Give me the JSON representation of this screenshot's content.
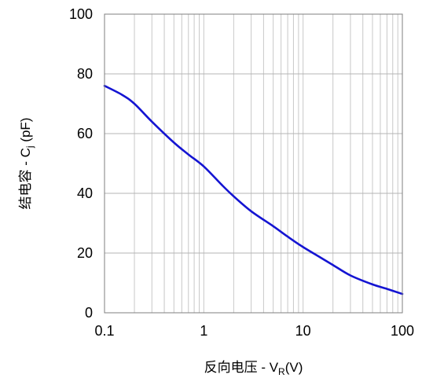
{
  "chart_data": {
    "type": "line",
    "xlabel": {
      "main": "反向电压 - V",
      "sub": "R",
      "tail": "(V)"
    },
    "ylabel": {
      "main": "结电容 - C",
      "sub": "j",
      "tail": " (pF)"
    },
    "xscale": "log",
    "xlim": [
      0.1,
      100
    ],
    "ylim": [
      0,
      100
    ],
    "xticks": [
      0.1,
      1,
      10,
      100
    ],
    "xtick_labels": [
      "0.1",
      "1",
      "10",
      "100"
    ],
    "yticks": [
      0,
      20,
      40,
      60,
      80,
      100
    ],
    "ytick_labels": [
      "0",
      "20",
      "40",
      "60",
      "80",
      "100"
    ],
    "grid": true,
    "series": [
      {
        "color": "#1414d2",
        "x": [
          0.1,
          0.15,
          0.2,
          0.3,
          0.5,
          0.7,
          1,
          1.5,
          2,
          3,
          5,
          7,
          10,
          15,
          20,
          30,
          50,
          70,
          100
        ],
        "y": [
          76,
          73,
          70,
          64,
          57,
          53,
          49,
          43,
          39,
          34,
          29,
          25.5,
          22,
          18.5,
          16,
          12.5,
          9.5,
          8,
          6.3
        ]
      }
    ]
  }
}
